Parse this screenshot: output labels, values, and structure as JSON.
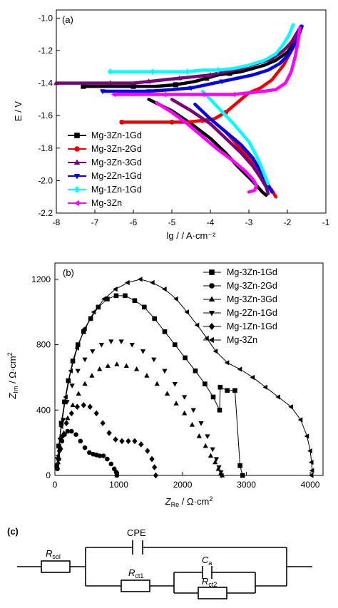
{
  "chart_data": [
    {
      "panel_label": "(a)",
      "type": "line",
      "xlabel": "lg / / A·cm⁻²",
      "ylabel": "E / V",
      "xlim": [
        -8,
        -1
      ],
      "ylim": [
        -2.2,
        -0.95
      ],
      "xticks": [
        -8,
        -7,
        -6,
        -5,
        -4,
        -3,
        -2,
        -1
      ],
      "yticks": [
        -2.2,
        -2.0,
        -1.8,
        -1.6,
        -1.4,
        -1.2,
        -1.0
      ],
      "legend_position": "lower-left",
      "series": [
        {
          "name": "Mg-3Zn-1Gd",
          "color": "#000000",
          "marker": "square",
          "x": [
            -7.3,
            -6.6,
            -6.0,
            -5.4,
            -4.9,
            -4.4,
            -4.1,
            -3.8,
            -3.5,
            -3.2,
            -2.9,
            -2.6,
            -2.3,
            -2.0,
            -1.85,
            -1.7,
            -1.62
          ],
          "y": [
            -1.42,
            -1.42,
            -1.42,
            -1.42,
            -1.41,
            -1.39,
            -1.37,
            -1.35,
            -1.34,
            -1.33,
            -1.31,
            -1.29,
            -1.26,
            -1.21,
            -1.16,
            -1.09,
            -1.05
          ]
        },
        {
          "name": "Mg-3Zn-2Gd",
          "color": "#ee0000",
          "marker": "circle",
          "x": [
            -6.3,
            -5.6,
            -5.0,
            -4.6,
            -4.2,
            -3.9,
            -3.6,
            -3.3,
            -3.0,
            -2.7,
            -2.4,
            -2.1,
            -1.85,
            -1.7,
            -1.63
          ],
          "y": [
            -1.64,
            -1.64,
            -1.64,
            -1.64,
            -1.63,
            -1.62,
            -1.58,
            -1.52,
            -1.46,
            -1.43,
            -1.38,
            -1.29,
            -1.18,
            -1.09,
            -1.05
          ]
        },
        {
          "name": "Mg-3Zn-3Gd",
          "color": "#7a007a",
          "marker": "triangle-up",
          "x": [
            -8.0,
            -7.3,
            -6.6,
            -6.0,
            -5.6,
            -5.2,
            -4.8,
            -4.4,
            -4.0,
            -3.6,
            -3.2,
            -2.8,
            -2.4,
            -2.1,
            -1.9,
            -1.75,
            -1.65
          ],
          "y": [
            -1.4,
            -1.4,
            -1.4,
            -1.4,
            -1.39,
            -1.38,
            -1.37,
            -1.36,
            -1.35,
            -1.33,
            -1.31,
            -1.28,
            -1.25,
            -1.2,
            -1.15,
            -1.09,
            -1.05
          ]
        },
        {
          "name": "Mg-2Zn-1Gd",
          "color": "#0000ee",
          "marker": "triangle-down",
          "x": [
            -6.8,
            -6.2,
            -5.6,
            -5.0,
            -4.5,
            -4.1,
            -3.7,
            -3.3,
            -2.9,
            -2.5,
            -2.2,
            -1.95,
            -1.8,
            -1.68,
            -1.62
          ],
          "y": [
            -1.45,
            -1.45,
            -1.45,
            -1.44,
            -1.43,
            -1.41,
            -1.39,
            -1.37,
            -1.35,
            -1.32,
            -1.28,
            -1.22,
            -1.16,
            -1.09,
            -1.05
          ]
        },
        {
          "name": "Mg-1Zn-1Gd",
          "color": "#00ffff",
          "marker": "diamond",
          "x": [
            -6.6,
            -6.0,
            -5.5,
            -5.0,
            -4.6,
            -4.2,
            -3.8,
            -3.4,
            -3.0,
            -2.6,
            -2.3,
            -2.1,
            -1.95,
            -1.85
          ],
          "y": [
            -1.33,
            -1.33,
            -1.33,
            -1.33,
            -1.33,
            -1.32,
            -1.32,
            -1.31,
            -1.29,
            -1.26,
            -1.22,
            -1.16,
            -1.1,
            -1.04
          ]
        },
        {
          "name": "Mg-3Zn",
          "color": "#ff00ff",
          "marker": "triangle-left",
          "x": [
            -6.5,
            -5.8,
            -5.2,
            -4.7,
            -4.2,
            -3.8,
            -3.4,
            -3.0,
            -2.6,
            -2.3,
            -2.05,
            -1.9,
            -1.8,
            -1.72,
            -1.68
          ],
          "y": [
            -1.47,
            -1.47,
            -1.47,
            -1.47,
            -1.47,
            -1.47,
            -1.47,
            -1.46,
            -1.45,
            -1.44,
            -1.4,
            -1.33,
            -1.24,
            -1.14,
            -1.06
          ]
        }
      ],
      "cathodic_branches": [
        {
          "name": "Mg-3Zn-1Gd",
          "x": [
            -5.6,
            -5.0,
            -4.5,
            -4.0,
            -3.6,
            -3.3,
            -3.0,
            -2.8,
            -2.65,
            -2.55
          ],
          "y": [
            -1.5,
            -1.57,
            -1.65,
            -1.74,
            -1.83,
            -1.91,
            -1.98,
            -2.03,
            -2.07,
            -2.09
          ]
        },
        {
          "name": "Mg-3Zn-2Gd",
          "x": [
            -3.6,
            -3.3,
            -3.0,
            -2.8,
            -2.65,
            -2.5,
            -2.4,
            -2.35,
            -2.3
          ],
          "y": [
            -1.7,
            -1.78,
            -1.86,
            -1.93,
            -1.99,
            -2.03,
            -2.06,
            -2.08,
            -2.1
          ]
        },
        {
          "name": "Mg-3Zn-3Gd",
          "x": [
            -5.0,
            -4.5,
            -4.0,
            -3.6,
            -3.2,
            -2.9,
            -2.7,
            -2.55,
            -2.5
          ],
          "y": [
            -1.5,
            -1.57,
            -1.65,
            -1.74,
            -1.83,
            -1.91,
            -1.98,
            -2.04,
            -2.08
          ]
        },
        {
          "name": "Mg-2Zn-1Gd",
          "x": [
            -4.4,
            -4.0,
            -3.6,
            -3.2,
            -2.9,
            -2.7,
            -2.55,
            -2.45,
            -2.4
          ],
          "y": [
            -1.53,
            -1.62,
            -1.7,
            -1.78,
            -1.86,
            -1.94,
            -2.0,
            -2.05,
            -2.07
          ]
        },
        {
          "name": "Mg-1Zn-1Gd",
          "x": [
            -4.2,
            -3.8,
            -3.4,
            -3.0,
            -2.8,
            -2.65,
            -2.55,
            -2.5
          ],
          "y": [
            -1.45,
            -1.55,
            -1.65,
            -1.76,
            -1.85,
            -1.93,
            -1.99,
            -2.02
          ]
        },
        {
          "name": "Mg-3Zn",
          "x": [
            -5.4,
            -5.0,
            -4.6,
            -4.2,
            -3.8,
            -3.4,
            -3.1,
            -2.9,
            -2.8,
            -2.85,
            -3.0
          ],
          "y": [
            -1.52,
            -1.58,
            -1.65,
            -1.73,
            -1.81,
            -1.88,
            -1.94,
            -1.99,
            -2.03,
            -2.06,
            -2.07
          ]
        }
      ]
    },
    {
      "panel_label": "(b)",
      "type": "scatter",
      "xlabel": "Z_Re / Ω·cm²",
      "ylabel": "Z_Im / Ω·cm²",
      "xlim": [
        0,
        4200
      ],
      "ylim": [
        0,
        1300
      ],
      "xticks": [
        0,
        1000,
        2000,
        3000,
        4000
      ],
      "yticks": [
        0,
        400,
        800,
        1200
      ],
      "legend_position": "top-right",
      "series": [
        {
          "name": "Mg-3Zn-1Gd",
          "marker": "square",
          "x": [
            30,
            60,
            100,
            150,
            210,
            280,
            360,
            450,
            560,
            680,
            820,
            960,
            1100,
            1250,
            1400,
            1560,
            1720,
            1880,
            2040,
            2200,
            2350,
            2480,
            2580,
            2590,
            2700,
            2820,
            2900,
            2940
          ],
          "y": [
            60,
            180,
            320,
            450,
            580,
            700,
            800,
            880,
            960,
            1030,
            1080,
            1100,
            1100,
            1070,
            1030,
            960,
            880,
            800,
            720,
            640,
            560,
            480,
            400,
            540,
            520,
            520,
            60,
            0
          ]
        },
        {
          "name": "Mg-3Zn-2Gd",
          "marker": "circle",
          "x": [
            40,
            60,
            80,
            110,
            150,
            200,
            260,
            330,
            400,
            470,
            540,
            600,
            650,
            700,
            760,
            820,
            880,
            930,
            960,
            970
          ],
          "y": [
            40,
            100,
            160,
            210,
            250,
            270,
            270,
            250,
            210,
            170,
            140,
            130,
            125,
            120,
            120,
            100,
            70,
            40,
            20,
            0
          ]
        },
        {
          "name": "Mg-3Zn-3Gd",
          "marker": "triangle-up",
          "x": [
            50,
            90,
            140,
            200,
            280,
            370,
            470,
            580,
            700,
            830,
            970,
            1120,
            1280,
            1440,
            1600,
            1760,
            1900,
            2030,
            2150,
            2260,
            2360,
            2440,
            2510,
            2560,
            2600,
            2620
          ],
          "y": [
            80,
            170,
            260,
            350,
            430,
            500,
            560,
            610,
            650,
            670,
            680,
            670,
            650,
            610,
            560,
            500,
            440,
            380,
            310,
            240,
            180,
            120,
            80,
            40,
            15,
            0
          ]
        },
        {
          "name": "Mg-2Zn-1Gd",
          "marker": "triangle-down",
          "x": [
            40,
            80,
            130,
            190,
            270,
            360,
            470,
            590,
            730,
            880,
            1040,
            1210,
            1380,
            1550,
            1720,
            1880,
            2030,
            2170,
            2290,
            2390,
            2470,
            2530,
            2570,
            2600,
            2610
          ],
          "y": [
            100,
            220,
            340,
            450,
            550,
            640,
            710,
            760,
            800,
            820,
            820,
            800,
            760,
            710,
            640,
            560,
            480,
            400,
            320,
            240,
            160,
            100,
            50,
            20,
            0
          ]
        },
        {
          "name": "Mg-1Zn-1Gd",
          "marker": "diamond",
          "x": [
            30,
            70,
            120,
            180,
            260,
            350,
            450,
            550,
            650,
            750,
            850,
            950,
            1050,
            1150,
            1250,
            1350,
            1450,
            1520,
            1560,
            1580
          ],
          "y": [
            60,
            150,
            240,
            320,
            380,
            420,
            430,
            420,
            380,
            320,
            260,
            220,
            210,
            210,
            210,
            190,
            150,
            100,
            50,
            0
          ]
        },
        {
          "name": "Mg-3Zn",
          "marker": "triangle-left",
          "x": [
            50,
            100,
            170,
            250,
            350,
            470,
            610,
            770,
            950,
            1140,
            1340,
            1530,
            1720,
            1900,
            2070,
            2230,
            2380,
            2520,
            2700,
            2900,
            3100,
            3300,
            3500,
            3700,
            3850,
            3950,
            4000,
            4020,
            4030,
            4020
          ],
          "y": [
            120,
            300,
            480,
            640,
            780,
            900,
            1000,
            1080,
            1140,
            1180,
            1200,
            1180,
            1140,
            1080,
            1000,
            920,
            840,
            760,
            690,
            650,
            600,
            540,
            480,
            420,
            340,
            240,
            150,
            80,
            30,
            0
          ]
        }
      ]
    },
    {
      "panel_label": "(c)",
      "type": "circuit",
      "components": [
        "R_sol",
        "CPE",
        "R_ct1",
        "C_a",
        "R_ct2"
      ]
    }
  ],
  "colors": {
    "axis": "#000000",
    "background": "#ffffff"
  }
}
